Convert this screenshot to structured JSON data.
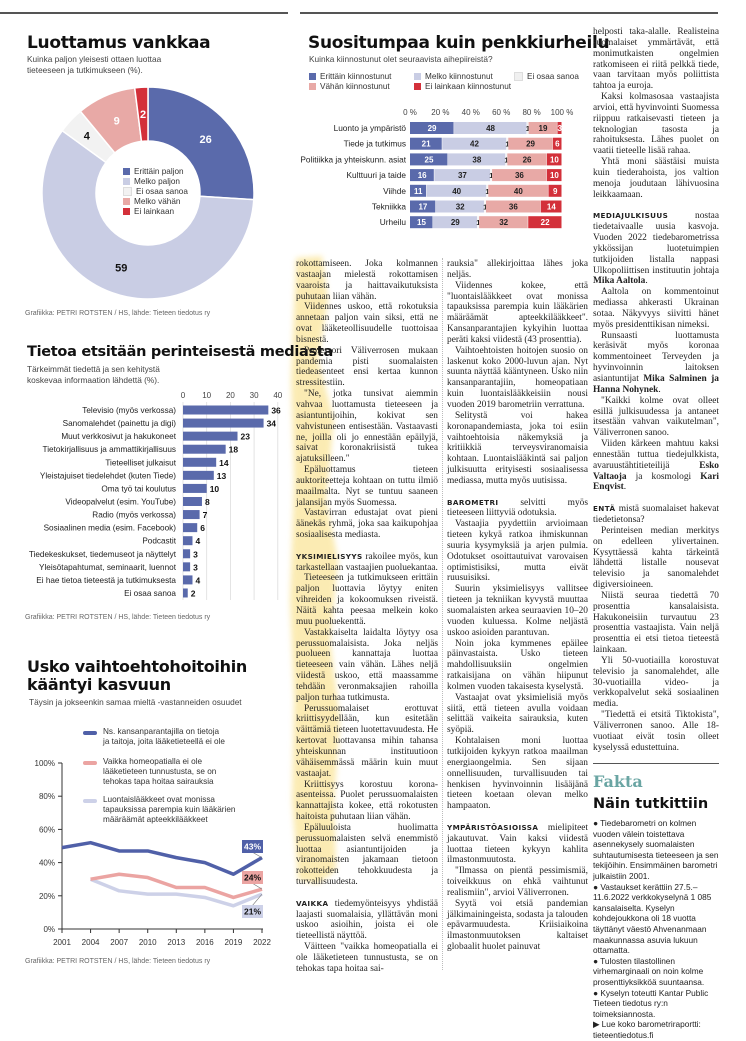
{
  "chart_data": [
    {
      "type": "pie",
      "title": "Luottamus vankkaa",
      "subtitle": "Kuinka paljon yleisesti ottaen luottaa tieteeseen ja tutkimukseen (%).",
      "categories": [
        "Erittäin paljon",
        "Melko paljon",
        "Ei osaa sanoa",
        "Melko vähän",
        "Ei lainkaan"
      ],
      "values": [
        26,
        59,
        4,
        9,
        2
      ],
      "colors": [
        "#5a6aab",
        "#c9cde4",
        "#f2f2f2",
        "#e8a9a6",
        "#d3303a"
      ],
      "legend": "center",
      "credit": "Grafiikka: PETRI ROTSTEN / HS, lähde: Tieteen tiedotus ry"
    },
    {
      "type": "bar",
      "stacked": true,
      "orientation": "horizontal",
      "title": "Suositumpaa kuin penkkiurheilu",
      "subtitle": "Kuinka kiinnostunut olet seuraavista aihepiireistä?",
      "xticks": [
        "0 %",
        "20 %",
        "40 %",
        "60 %",
        "80 %",
        "100 %"
      ],
      "xlim": [
        0,
        100
      ],
      "categories": [
        "Luonto ja ympäristö",
        "Tiede ja tutkimus",
        "Politiikka ja yhteiskunn. asiat",
        "Kulttuuri ja taide",
        "Viihde",
        "Tekniikka",
        "Urheilu"
      ],
      "series": [
        {
          "name": "Erittäin kiinnostunut",
          "color": "#5a6aab",
          "values": [
            29,
            21,
            25,
            16,
            11,
            17,
            15
          ]
        },
        {
          "name": "Melko kiinnostunut",
          "color": "#c9cde4",
          "values": [
            48,
            42,
            38,
            37,
            40,
            32,
            29
          ]
        },
        {
          "name": "Ei osaa sanoa",
          "color": "#f0f0f0",
          "values": [
            1,
            1,
            1,
            1,
            1,
            1,
            1
          ]
        },
        {
          "name": "Vähän kiinnostunut",
          "color": "#e8a9a6",
          "values": [
            19,
            29,
            26,
            36,
            40,
            36,
            32
          ]
        },
        {
          "name": "Ei lainkaan kiinnostunut",
          "color": "#d3303a",
          "values": [
            3,
            6,
            10,
            10,
            9,
            14,
            22
          ]
        }
      ],
      "legend": "top"
    },
    {
      "type": "bar",
      "orientation": "horizontal",
      "title": "Tietoa etsitään perinteisestä mediasta",
      "subtitle": "Tärkeimmät tiedettä ja sen kehitystä koskevaa informaation lähdettä (%).",
      "xticks": [
        "0",
        "10",
        "20",
        "30",
        "40"
      ],
      "xlim": [
        0,
        40
      ],
      "grid": true,
      "color": "#5a6aab",
      "categories": [
        "Televisio (myös verkossa)",
        "Sanomalehdet (painettu ja digi)",
        "Muut verkkosivut ja hakukoneet",
        "Tietokirjallisuus ja ammattikirjallisuus",
        "Tieteelliset julkaisut",
        "Yleistajuiset tiedelehdet (kuten Tiede)",
        "Oma työ tai koulutus",
        "Videopalvelut (esim. YouTube)",
        "Radio (myös verkossa)",
        "Sosiaalinen media (esim. Facebook)",
        "Podcastit",
        "Tiedekeskukset, tiedemuseot ja näyttelyt",
        "Yleisötapahtumat, seminaarit, luennot",
        "Ei hae tietoa tieteestä ja tutkimuksesta",
        "Ei osaa sanoa"
      ],
      "values": [
        36,
        34,
        23,
        18,
        14,
        13,
        10,
        8,
        7,
        6,
        4,
        3,
        3,
        4,
        2
      ],
      "credit": "Grafiikka: PETRI ROTSTEN / HS, lähde: Tieteen tiedotus ry"
    },
    {
      "type": "line",
      "title_lines": [
        "Usko vaihtoehtohoitoihin",
        "kääntyi kasvuun"
      ],
      "subtitle": "Täysin ja jokseenkin samaa mieltä -vastanneiden osuudet",
      "x": [
        2001,
        2004,
        2007,
        2010,
        2013,
        2016,
        2019,
        2022
      ],
      "xticks": [
        "2001",
        "2004",
        "2007",
        "2010",
        "2013",
        "2016",
        "2019",
        "2022"
      ],
      "yticks": [
        "0%",
        "20%",
        "40%",
        "60%",
        "80%",
        "100%"
      ],
      "ylim": [
        0,
        100
      ],
      "series": [
        {
          "name_lines": [
            "Ns. kansanparantajilla on tietoja",
            "ja taitoja, joita lääketieteellä ei ole"
          ],
          "color": "#5060a8",
          "values": [
            49,
            52,
            47,
            47,
            43,
            40,
            33,
            43
          ],
          "end_label": "43%"
        },
        {
          "name_lines": [
            "Vaikka homeopatialla ei ole",
            "lääketieteen tunnustusta, se on",
            "tehokas tapa hoitaa sairauksia"
          ],
          "color": "#eba4a2",
          "values": [
            null,
            30,
            33,
            31,
            25,
            25,
            19,
            24
          ],
          "end_label": "24%"
        },
        {
          "name_lines": [
            "Luontaislääkkeet ovat monissa",
            "tapauksissa parempia kuin lääkärien",
            "määräämät apteekkilääkkeet"
          ],
          "color": "#cdd1e8",
          "values": [
            null,
            30,
            23,
            21,
            21,
            19,
            14,
            21
          ],
          "end_label": "21%"
        }
      ],
      "legend": "top",
      "credit": "Grafiikka: PETRI ROTSTEN / HS, lähde: Tieteen tiedotus ry"
    }
  ],
  "article": {
    "columns": [
      [
        {
          "cls": "noind",
          "segs": [
            {
              "t": "rokottamiseen. Joka kolmannen vastaajan mielestä rokottamisen vaaroista ja haittavaikutuksista puhutaan liian vähän."
            }
          ]
        },
        {
          "segs": [
            {
              "t": "Viidennes uskoo, että rokotuksia annetaan paljon vain siksi, että ne ovat lääketeollisuudelle tuottoisaa bisnestä."
            }
          ]
        },
        {
          "segs": [
            {
              "t": "Professori Väliverrosen mukaan pandemia pisti suomalaisten tiedeasenteet ensi kertaa kunnon stressitestiin."
            }
          ]
        },
        {
          "segs": [
            {
              "t": "\"Ne, jotka tunsivat aiemmin vahvaa luottamusta tieteeseen ja asiantuntijoihin, kokivat sen vahvistuneen entisestään. Vastaavasti ne, joilla oli jo ennestään epäilyjä, saivat koronakriisistä tukea ajatuksilleen.\""
            }
          ]
        },
        {
          "segs": [
            {
              "t": "Epäluottamus tieteen auktoriteetteja kohtaan on tuttu ilmiö maailmalta. Nyt se tuntuu saaneen jalansijan myös Suomessa."
            }
          ]
        },
        {
          "segs": [
            {
              "t": "Vastavirran edustajat ovat pieni äänekäs ryhmä, joka saa kaikupohjaa sosiaalisesta mediasta."
            }
          ]
        },
        {
          "cls": "lead",
          "lead": "YKSIMIELISYYS",
          "segs": [
            {
              "t": " rakoilee myös, kun tarkastellaan vastaajien puoluekantaa."
            }
          ]
        },
        {
          "segs": [
            {
              "t": "Tieteeseen ja tutkimukseen erittäin paljon luottavia löytyy eniten vihreiden ja kokoomuksen riveistä. Näitä kahta peesaa melkein koko muu puoluekenttä."
            }
          ]
        },
        {
          "segs": [
            {
              "t": "Vastakkaiselta laidalta löytyy osa perussuomalaisista. Joka neljäs puolueen kannattaja luottaa tieteeseen vain vähän. Lähes neljä viidestä uskoo, että maassamme tehdään veronmaksajien rahoilla paljon turhaa tutkimusta."
            }
          ]
        },
        {
          "segs": [
            {
              "t": "Perussuomalaiset erottuvat kriittisyydellään, kun esitetään väittämiä tieteen luotettavuudesta. He kertovat luottavansa mihin tahansa yhteiskunnan instituutioon vähäisemmässä määrin kuin muut vastaajat."
            }
          ]
        },
        {
          "segs": [
            {
              "t": "Kriittisyys korostuu korona-asenteissa. Puolet perussuomalaisten kannattajista kokee, että rokotusten haitoista puhutaan liian vähän."
            }
          ]
        },
        {
          "segs": [
            {
              "t": "Epäluuloista huolimatta perussuomalaisten selvä enemmistö luottaa asiantuntijoiden ja viranomaisten jakamaan tietoon rokotteiden tehokkuudesta ja turvallisuudesta."
            }
          ]
        },
        {
          "cls": "lead",
          "lead": "VAIKKA",
          "segs": [
            {
              "t": " tiedemyönteisyys yhdistää laajasti suomalaisia, yllättävän moni uskoo asioihin, joista ei ole tieteellistä näyttöä."
            }
          ]
        },
        {
          "segs": [
            {
              "t": "Väitteen \"vaikka homeopatialla ei ole lääketieteen tunnustusta, se on tehokas tapa hoitaa sai-"
            }
          ]
        }
      ],
      [
        {
          "cls": "noind",
          "segs": [
            {
              "t": "rauksia\" allekirjoittaa lähes joka neljäs."
            }
          ]
        },
        {
          "segs": [
            {
              "t": "Viidennes kokee, että \"luontaislääkkeet ovat monissa tapauksissa parempia kuin lääkärien määräämät apteekkilääkkeet\". Kansanparantajien kykyihin luottaa peräti kaksi viidestä (43 prosenttia)."
            }
          ]
        },
        {
          "segs": [
            {
              "t": "Vaihtoehtoisten hoitojen suosio on laskenut koko 2000-luvun ajan. Nyt suunta näyttää kääntyneen. Usko niin kansanparantajiin, homeopatiaan kuin luontaislääkkeisiin nousi vuoden 2019 barometriin verrattuna."
            }
          ]
        },
        {
          "segs": [
            {
              "t": "Selitystä voi hakea koronapandemiasta, joka toi esiin vaihtoehtoisia näkemyksiä ja kritiikkiä terveysviranomaisia kohtaan. Luontaislääkintä sai paljon julkisuutta erityisesti sosiaalisessa mediassa, mutta myös uutisissa."
            }
          ]
        },
        {
          "cls": "lead",
          "lead": "BAROMETRI",
          "segs": [
            {
              "t": " selvitti myös tieteeseen liittyviä odotuksia."
            }
          ]
        },
        {
          "segs": [
            {
              "t": "Vastaajia pyydettiin arvioimaan tieteen kykyä ratkoa ihmiskunnan suuria kysymyksiä ja arjen pulmia. Odotukset osoittautuivat varovaisen optimistisiksi, mutta eivät ruusuisiksi."
            }
          ]
        },
        {
          "segs": [
            {
              "t": "Suurin yksimielisyys vallitsee tieteen ja tekniikan kyvystä muuttaa suomalaisten arkea seuraavien 10–20 vuoden kuluessa. Kolme neljästä uskoo asioiden parantuvan."
            }
          ]
        },
        {
          "segs": [
            {
              "t": "Noin joka kymmenes epäilee päinvastaista. Usko tieteen mahdollisuuksiin ongelmien ratkaisijana on vähän hiipunut kolmen vuoden takaisesta kyselystä."
            }
          ]
        },
        {
          "segs": [
            {
              "t": "Vastaajat ovat yksimielisiä myös siitä, että tieteen avulla voidaan selittää vaikeita sairauksia, kuten syöpiä."
            }
          ]
        },
        {
          "segs": [
            {
              "t": "Kohtalaisen moni luottaa tutkijoiden kykyyn ratkoa maailman energiaongelmia. Sen sijaan onnellisuuden, turvallisuuden tai henkisen hyvinvoinnin lisääjänä tieteen koetaan olevan melko hampaaton."
            }
          ]
        },
        {
          "cls": "lead",
          "lead": "YMPÄRISTÖASIOISSA",
          "segs": [
            {
              "t": " mielipiteet jakautuvat. Vain kaksi viidestä luottaa tieteen kykyyn kahlita ilmastonmuutosta."
            }
          ]
        },
        {
          "segs": [
            {
              "t": "\"Ilmassa on pientä pessimismiä, toiveikkuus on ehkä vaihtunut realismiin\", arvioi Väliverronen."
            }
          ]
        },
        {
          "segs": [
            {
              "t": "Syytä voi etsiä pandemian jälkimainingeista, sodasta ja talouden epävarmuudesta. Kriisiaikoina ilmastonmuutoksen kaltaiset globaalit huolet painuvat"
            }
          ]
        }
      ],
      [
        {
          "cls": "noind",
          "segs": [
            {
              "t": "helposti taka-alalle. Realisteina suomalaiset ymmärtävät, että monimutkaisten ongelmien ratkomiseen ei riitä pelkkä tiede, vaan tarvitaan myös poliittista tahtoa ja euroja."
            }
          ]
        },
        {
          "segs": [
            {
              "t": "Kaksi kolmasosaa vastaajista arvioi, että hyvinvointi Suomessa riippuu ratkaisevasti tieteen ja teknologian tasosta ja rahoituksesta. Lähes puolet on vaatii tieteelle lisää rahaa."
            }
          ]
        },
        {
          "segs": [
            {
              "t": "Yhtä moni säästäisi muista kuin tiederahoista, jos valtion menoja joudutaan lähivuosina leikkaamaan."
            }
          ]
        },
        {
          "cls": "lead",
          "lead": "MEDIAJULKISUUS",
          "segs": [
            {
              "t": " nostaa tiedetaivaalle uusia kasvoja. Vuoden 2022 tiedebarometrissa ykkössijan luotetuimpien tutkijoiden listalla nappasi Ulkopoliittisen instituutin johtaja "
            },
            {
              "t": "Mika Aaltola",
              "b": true
            },
            {
              "t": "."
            }
          ]
        },
        {
          "segs": [
            {
              "t": "Aaltola on kommentoinut mediassa ahkerasti Ukrainan sotaa. Näkyvyys siivitti hänet myös presidenttikisan nimeksi."
            }
          ]
        },
        {
          "segs": [
            {
              "t": "Runsaasti luottamusta keräsivät myös koronaa kommentoineet Terveyden ja hyvinvoinnin laitoksen asiantuntijat "
            },
            {
              "t": "Mika Salminen ja Hanna Nohynek",
              "b": true
            },
            {
              "t": "."
            }
          ]
        },
        {
          "segs": [
            {
              "t": "\"Kaikki kolme ovat olleet esillä julkisuudessa ja antaneet itsestään vahvan vaikutelman\", Väliverronen sanoo."
            }
          ]
        },
        {
          "segs": [
            {
              "t": "Viiden kärkeen mahtuu kaksi ennestään tuttua tiedejulkkista, avaruustähtitieteilijä "
            },
            {
              "t": "Esko Valtaoja",
              "b": true
            },
            {
              "t": " ja kosmologi "
            },
            {
              "t": "Kari Enqvist",
              "b": true
            },
            {
              "t": "."
            }
          ]
        },
        {
          "cls": "lead",
          "lead": "ENTÄ",
          "segs": [
            {
              "t": " mistä suomalaiset hakevat tiedetietonsa?"
            }
          ]
        },
        {
          "segs": [
            {
              "t": "Perinteisen median merkitys on edelleen ylivertainen. Kysyttäessä kahta tärkeintä lähdettä listalle nousevat televisio ja sanomalehdet digiversioineen."
            }
          ]
        },
        {
          "segs": [
            {
              "t": "Niistä seuraa tiedettä 70 prosenttia kansalaisista. Hakukoneisiin turvautuu 23 prosenttia vastaajista. Vain neljä prosenttia ei etsi tietoa tieteestä lainkaan."
            }
          ]
        },
        {
          "segs": [
            {
              "t": "Yli 50-vuotiailla korostuvat televisio ja sanomalehdet, alle 30-vuotiailla video- ja verkkopalvelut sekä sosiaalinen media."
            }
          ]
        },
        {
          "segs": [
            {
              "t": "\"Tiedettä ei etsitä Tiktokista\", Väliverronen sanoo. Alle 18-vuotiaat eivät tosin olleet kyselyssä edustettuina."
            }
          ]
        }
      ]
    ]
  },
  "fakta": {
    "label": "Fakta",
    "title": "Näin tutkittiin",
    "bullets": [
      "● Tiedebarometri on kolmen vuoden välein toistettava asennekysely suomalaisten suhtautumisesta tieteeseen ja sen tekijöihin. Ensimmäinen barometri julkaistiin 2001.",
      "● Vastaukset kerättiin 27.5.–11.6.2022 verkkokyselynä 1 085 kansalaiselta. Kyselyn kohdejoukkona oli 18 vuotta täyttänyt väestö Ahvenanmaan maakunnassa asuvia lukuun ottamatta.",
      "● Tulosten tilastollinen virhemarginaali on noin kolme prosenttiyksikköä suuntaansa.",
      "● Kyselyn toteutti Kantar Public Tieteen tiedotus ry:n toimeksiannosta."
    ],
    "link_prefix": "▶ Lue koko barometriraportti:",
    "link_url": "tieteentiedotus.fi"
  },
  "colors": {
    "highlight": "#fbe8a6",
    "rule": "#555555",
    "fakta": "#6aa5a3"
  }
}
